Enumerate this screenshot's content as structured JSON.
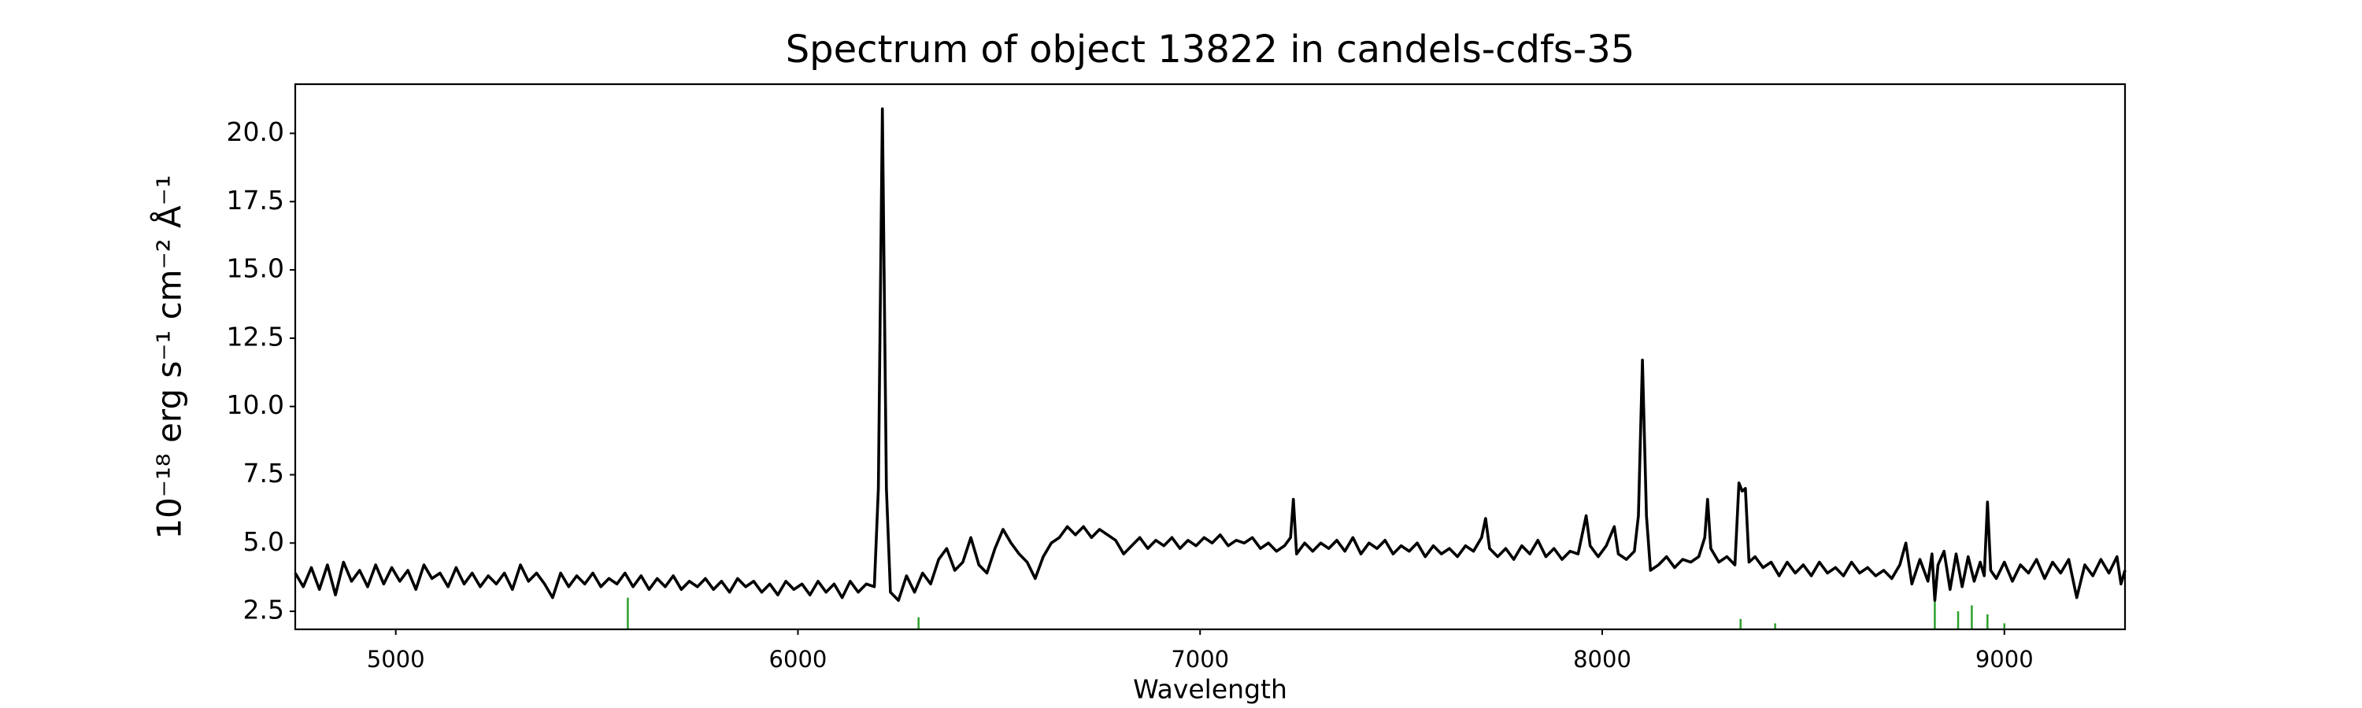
{
  "chart_data": {
    "type": "line",
    "title": "Spectrum of object 13822 in candels-cdfs-35",
    "x_label": "Wavelength",
    "y_label": "10⁻¹⁸ erg s⁻¹ cm⁻² Å⁻¹",
    "xlim": [
      4750,
      9300
    ],
    "ylim": [
      1.84,
      21.8
    ],
    "xticks": [
      5000,
      6000,
      7000,
      8000,
      9000
    ],
    "yticks": [
      2.5,
      {
        "value": 5,
        "label": "5.0"
      },
      7.5,
      {
        "value": 10,
        "label": "10.0"
      },
      12.5,
      {
        "value": 15,
        "label": "15.0"
      },
      17.5,
      {
        "value": 20,
        "label": "20.0"
      }
    ],
    "grid": false,
    "x": [
      4750,
      4770,
      4790,
      4810,
      4830,
      4850,
      4870,
      4890,
      4910,
      4930,
      4950,
      4970,
      4990,
      5010,
      5030,
      5050,
      5070,
      5090,
      5110,
      5130,
      5150,
      5170,
      5190,
      5210,
      5230,
      5250,
      5270,
      5290,
      5310,
      5330,
      5350,
      5370,
      5390,
      5410,
      5430,
      5450,
      5470,
      5490,
      5510,
      5530,
      5550,
      5570,
      5590,
      5610,
      5630,
      5650,
      5670,
      5690,
      5710,
      5730,
      5750,
      5770,
      5790,
      5810,
      5830,
      5850,
      5870,
      5890,
      5910,
      5930,
      5950,
      5970,
      5990,
      6010,
      6030,
      6050,
      6070,
      6090,
      6110,
      6130,
      6150,
      6170,
      6190,
      6200,
      6210,
      6220,
      6230,
      6250,
      6270,
      6290,
      6310,
      6330,
      6350,
      6370,
      6390,
      6410,
      6430,
      6450,
      6470,
      6490,
      6510,
      6530,
      6550,
      6570,
      6590,
      6610,
      6630,
      6650,
      6670,
      6690,
      6710,
      6730,
      6750,
      6770,
      6790,
      6810,
      6830,
      6850,
      6870,
      6890,
      6910,
      6930,
      6950,
      6970,
      6990,
      7010,
      7030,
      7050,
      7070,
      7090,
      7110,
      7130,
      7150,
      7170,
      7190,
      7210,
      7225,
      7232,
      7240,
      7260,
      7280,
      7300,
      7320,
      7340,
      7360,
      7380,
      7400,
      7420,
      7440,
      7460,
      7480,
      7500,
      7520,
      7540,
      7560,
      7580,
      7600,
      7620,
      7640,
      7660,
      7680,
      7700,
      7710,
      7720,
      7740,
      7760,
      7780,
      7800,
      7820,
      7840,
      7860,
      7880,
      7900,
      7920,
      7940,
      7960,
      7970,
      7990,
      8010,
      8030,
      8040,
      8060,
      8080,
      8090,
      8100,
      8110,
      8120,
      8140,
      8160,
      8180,
      8200,
      8220,
      8240,
      8255,
      8262,
      8270,
      8290,
      8310,
      8330,
      8340,
      8348,
      8356,
      8365,
      8380,
      8400,
      8420,
      8440,
      8460,
      8480,
      8500,
      8520,
      8540,
      8560,
      8580,
      8600,
      8620,
      8640,
      8660,
      8680,
      8700,
      8720,
      8740,
      8755,
      8770,
      8790,
      8810,
      8820,
      8827,
      8835,
      8850,
      8865,
      8880,
      8895,
      8910,
      8925,
      8940,
      8950,
      8958,
      8966,
      8980,
      9000,
      9020,
      9040,
      9060,
      9080,
      9100,
      9120,
      9140,
      9160,
      9180,
      9200,
      9220,
      9240,
      9260,
      9280,
      9290,
      9300
    ],
    "series": [
      {
        "color": "#000000",
        "values": [
          3.9,
          3.4,
          4.1,
          3.3,
          4.2,
          3.1,
          4.3,
          3.6,
          4.0,
          3.4,
          4.2,
          3.5,
          4.1,
          3.6,
          4.0,
          3.3,
          4.2,
          3.7,
          3.9,
          3.4,
          4.1,
          3.5,
          3.9,
          3.4,
          3.8,
          3.5,
          3.9,
          3.3,
          4.2,
          3.6,
          3.9,
          3.5,
          3.0,
          3.9,
          3.4,
          3.8,
          3.5,
          3.9,
          3.4,
          3.7,
          3.5,
          3.9,
          3.4,
          3.8,
          3.3,
          3.7,
          3.4,
          3.8,
          3.3,
          3.6,
          3.4,
          3.7,
          3.3,
          3.6,
          3.2,
          3.7,
          3.4,
          3.6,
          3.2,
          3.5,
          3.1,
          3.6,
          3.3,
          3.5,
          3.1,
          3.6,
          3.2,
          3.5,
          3.0,
          3.6,
          3.2,
          3.5,
          3.4,
          7.0,
          20.9,
          7.0,
          3.2,
          2.9,
          3.8,
          3.2,
          3.9,
          3.5,
          4.4,
          4.8,
          4.0,
          4.3,
          5.2,
          4.2,
          3.9,
          4.8,
          5.5,
          5.0,
          4.6,
          4.3,
          3.7,
          4.5,
          5.0,
          5.2,
          5.6,
          5.3,
          5.6,
          5.2,
          5.5,
          5.3,
          5.1,
          4.6,
          4.9,
          5.2,
          4.8,
          5.1,
          4.9,
          5.2,
          4.8,
          5.1,
          4.9,
          5.2,
          5.0,
          5.3,
          4.9,
          5.1,
          5.0,
          5.2,
          4.8,
          5.0,
          4.7,
          4.9,
          5.2,
          6.6,
          4.6,
          5.0,
          4.7,
          5.0,
          4.8,
          5.1,
          4.7,
          5.2,
          4.6,
          5.0,
          4.8,
          5.1,
          4.6,
          4.9,
          4.7,
          5.0,
          4.5,
          4.9,
          4.6,
          4.8,
          4.5,
          4.9,
          4.7,
          5.2,
          5.9,
          4.8,
          4.5,
          4.8,
          4.4,
          4.9,
          4.6,
          5.1,
          4.5,
          4.8,
          4.4,
          4.7,
          4.6,
          6.0,
          4.9,
          4.5,
          4.9,
          5.6,
          4.6,
          4.4,
          4.7,
          6.0,
          11.7,
          6.0,
          4.0,
          4.2,
          4.5,
          4.1,
          4.4,
          4.3,
          4.5,
          5.2,
          6.6,
          4.8,
          4.3,
          4.5,
          4.2,
          7.2,
          6.9,
          7.0,
          4.3,
          4.5,
          4.1,
          4.3,
          3.8,
          4.3,
          3.9,
          4.2,
          3.8,
          4.3,
          3.9,
          4.1,
          3.8,
          4.3,
          3.9,
          4.1,
          3.8,
          4.0,
          3.7,
          4.2,
          5.0,
          3.5,
          4.4,
          3.6,
          4.6,
          2.9,
          4.2,
          4.7,
          3.3,
          4.6,
          3.4,
          4.5,
          3.6,
          4.3,
          3.8,
          6.5,
          4.0,
          3.7,
          4.3,
          3.6,
          4.2,
          3.9,
          4.4,
          3.7,
          4.3,
          3.9,
          4.4,
          3.0,
          4.2,
          3.8,
          4.4,
          3.9,
          4.5,
          3.5,
          4.0
        ]
      }
    ],
    "sky_lines": {
      "color": "#2ca02c",
      "x": [
        5577,
        6300,
        8344,
        8430,
        8827,
        8885,
        8919,
        8958,
        9000
      ],
      "values": [
        3.0,
        2.28,
        2.22,
        2.06,
        2.94,
        2.5,
        2.72,
        2.39,
        2.06
      ]
    }
  }
}
